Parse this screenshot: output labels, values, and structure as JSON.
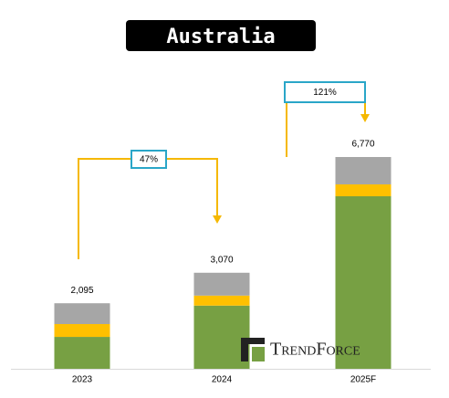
{
  "chart_data": {
    "type": "stacked-bar",
    "title": "Australia",
    "categories": [
      "2023",
      "2024",
      "2025F"
    ],
    "series": [
      {
        "color": "#77a043",
        "values": [
          1020,
          2020,
          5515
        ]
      },
      {
        "color": "#ffc000",
        "values": [
          410,
          320,
          380
        ]
      },
      {
        "color": "#a6a6a6",
        "values": [
          665,
          730,
          875
        ]
      }
    ],
    "totals": [
      2095,
      3070,
      6770
    ],
    "total_labels": [
      "2,095",
      "3,070",
      "6,770"
    ],
    "annotations": [
      "47%",
      "121%"
    ],
    "watermark": "TrendForce"
  }
}
